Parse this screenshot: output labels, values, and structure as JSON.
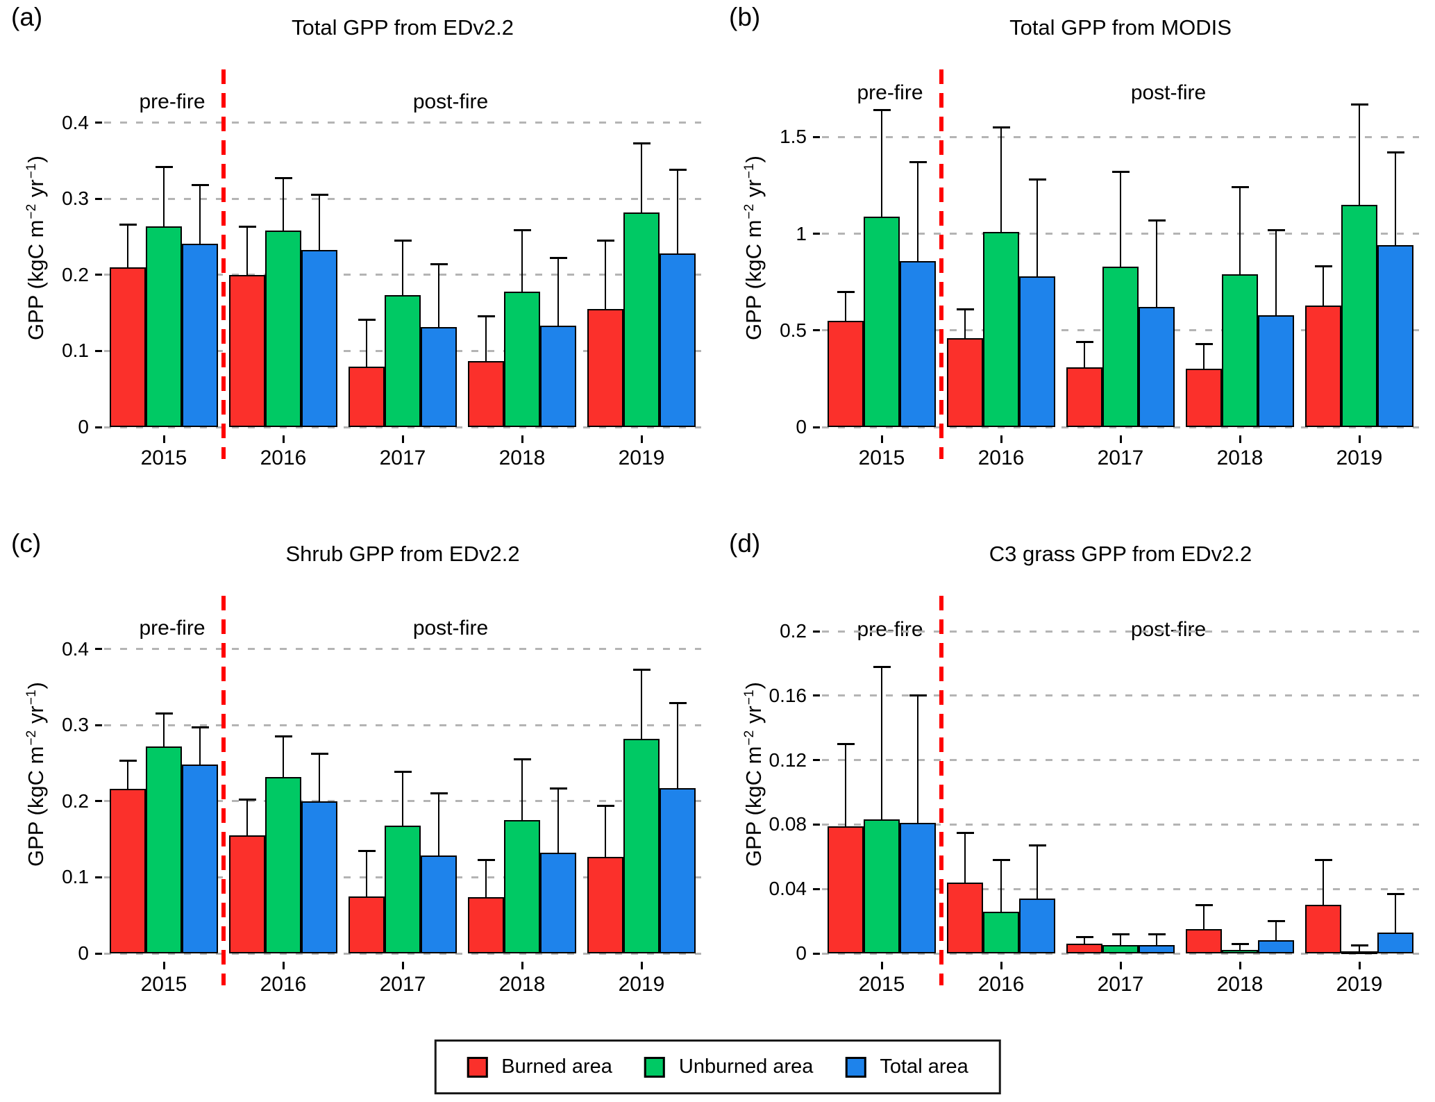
{
  "figure": {
    "ylabel": {
      "pre": "GPP (kgC m",
      "sup1": "−2",
      "mid": " yr",
      "sup2": "−1",
      "post": ")"
    },
    "annotations": {
      "pre": "pre-fire",
      "post": "post-fire"
    },
    "divider_color": "#ff0000",
    "legend": {
      "items": [
        {
          "label": "Burned area",
          "color": "#fb302b"
        },
        {
          "label": "Unburned area",
          "color": "#00c964"
        },
        {
          "label": "Total area",
          "color": "#1e83eb"
        }
      ]
    }
  },
  "chart_data": [
    {
      "type": "bar",
      "label": "(a)",
      "title": "Total GPP from EDv2.2",
      "xlabel": "",
      "ylabel": "GPP (kgC m−2 yr−1)",
      "categories": [
        "2015",
        "2016",
        "2017",
        "2018",
        "2019"
      ],
      "yticks": [
        {
          "v": 0,
          "t": "0"
        },
        {
          "v": 0.1,
          "t": "0.1"
        },
        {
          "v": 0.2,
          "t": "0.2"
        },
        {
          "v": 0.3,
          "t": "0.3"
        },
        {
          "v": 0.4,
          "t": "0.4"
        }
      ],
      "ylim": [
        0,
        0.47
      ],
      "annot_y": 0.425,
      "grid": true,
      "series": [
        {
          "name": "Burned area",
          "color": "#fb302b",
          "values": [
            0.21,
            0.2,
            0.079,
            0.087,
            0.155
          ],
          "err_top": [
            0.266,
            0.263,
            0.141,
            0.146,
            0.245
          ]
        },
        {
          "name": "Unburned area",
          "color": "#00c964",
          "values": [
            0.264,
            0.258,
            0.173,
            0.178,
            0.282
          ],
          "err_top": [
            0.342,
            0.327,
            0.245,
            0.259,
            0.373
          ]
        },
        {
          "name": "Total area",
          "color": "#1e83eb",
          "values": [
            0.241,
            0.233,
            0.131,
            0.133,
            0.228
          ],
          "err_top": [
            0.318,
            0.305,
            0.214,
            0.222,
            0.338
          ]
        }
      ]
    },
    {
      "type": "bar",
      "label": "(b)",
      "title": "Total GPP from MODIS",
      "xlabel": "",
      "ylabel": "GPP (kgC m−2 yr−1)",
      "categories": [
        "2015",
        "2016",
        "2017",
        "2018",
        "2019"
      ],
      "yticks": [
        {
          "v": 0,
          "t": "0"
        },
        {
          "v": 0.5,
          "t": "0.5"
        },
        {
          "v": 1,
          "t": "1"
        },
        {
          "v": 1.5,
          "t": "1.5"
        }
      ],
      "ylim": [
        0,
        1.85
      ],
      "annot_y": 1.72,
      "grid": true,
      "series": [
        {
          "name": "Burned area",
          "color": "#fb302b",
          "values": [
            0.55,
            0.46,
            0.31,
            0.3,
            0.63
          ],
          "err_top": [
            0.7,
            0.61,
            0.44,
            0.43,
            0.83
          ]
        },
        {
          "name": "Unburned area",
          "color": "#00c964",
          "values": [
            1.09,
            1.01,
            0.83,
            0.79,
            1.15
          ],
          "err_top": [
            1.64,
            1.55,
            1.32,
            1.24,
            1.67
          ]
        },
        {
          "name": "Total area",
          "color": "#1e83eb",
          "values": [
            0.86,
            0.78,
            0.62,
            0.58,
            0.94
          ],
          "err_top": [
            1.37,
            1.28,
            1.07,
            1.02,
            1.42
          ]
        }
      ]
    },
    {
      "type": "bar",
      "label": "(c)",
      "title": "Shrub GPP from EDv2.2",
      "xlabel": "",
      "ylabel": "GPP (kgC m−2 yr−1)",
      "categories": [
        "2015",
        "2016",
        "2017",
        "2018",
        "2019"
      ],
      "yticks": [
        {
          "v": 0,
          "t": "0"
        },
        {
          "v": 0.1,
          "t": "0.1"
        },
        {
          "v": 0.2,
          "t": "0.2"
        },
        {
          "v": 0.3,
          "t": "0.3"
        },
        {
          "v": 0.4,
          "t": "0.4"
        }
      ],
      "ylim": [
        0,
        0.47
      ],
      "annot_y": 0.425,
      "grid": true,
      "series": [
        {
          "name": "Burned area",
          "color": "#fb302b",
          "values": [
            0.216,
            0.155,
            0.075,
            0.074,
            0.127
          ],
          "err_top": [
            0.253,
            0.202,
            0.135,
            0.123,
            0.194
          ]
        },
        {
          "name": "Unburned area",
          "color": "#00c964",
          "values": [
            0.272,
            0.232,
            0.168,
            0.175,
            0.282
          ],
          "err_top": [
            0.315,
            0.285,
            0.239,
            0.255,
            0.373
          ]
        },
        {
          "name": "Total area",
          "color": "#1e83eb",
          "values": [
            0.248,
            0.2,
            0.129,
            0.132,
            0.217
          ],
          "err_top": [
            0.297,
            0.262,
            0.21,
            0.217,
            0.329
          ]
        }
      ]
    },
    {
      "type": "bar",
      "label": "(d)",
      "title": "C3 grass GPP from EDv2.2",
      "xlabel": "",
      "ylabel": "GPP (kgC m−2 yr−1)",
      "categories": [
        "2015",
        "2016",
        "2017",
        "2018",
        "2019"
      ],
      "yticks": [
        {
          "v": 0,
          "t": "0"
        },
        {
          "v": 0.04,
          "t": "0.04"
        },
        {
          "v": 0.08,
          "t": "0.08"
        },
        {
          "v": 0.12,
          "t": "0.12"
        },
        {
          "v": 0.16,
          "t": "0.16"
        },
        {
          "v": 0.2,
          "t": "0.2"
        }
      ],
      "ylim": [
        0,
        0.222
      ],
      "annot_y": 0.2,
      "grid": true,
      "series": [
        {
          "name": "Burned area",
          "color": "#fb302b",
          "values": [
            0.079,
            0.044,
            0.006,
            0.015,
            0.03
          ],
          "err_top": [
            0.13,
            0.075,
            0.01,
            0.03,
            0.058
          ]
        },
        {
          "name": "Unburned area",
          "color": "#00c964",
          "values": [
            0.083,
            0.026,
            0.005,
            0.002,
            0.001
          ],
          "err_top": [
            0.178,
            0.058,
            0.012,
            0.006,
            0.005
          ]
        },
        {
          "name": "Total area",
          "color": "#1e83eb",
          "values": [
            0.081,
            0.034,
            0.005,
            0.008,
            0.013
          ],
          "err_top": [
            0.16,
            0.067,
            0.012,
            0.02,
            0.037
          ]
        }
      ]
    }
  ]
}
